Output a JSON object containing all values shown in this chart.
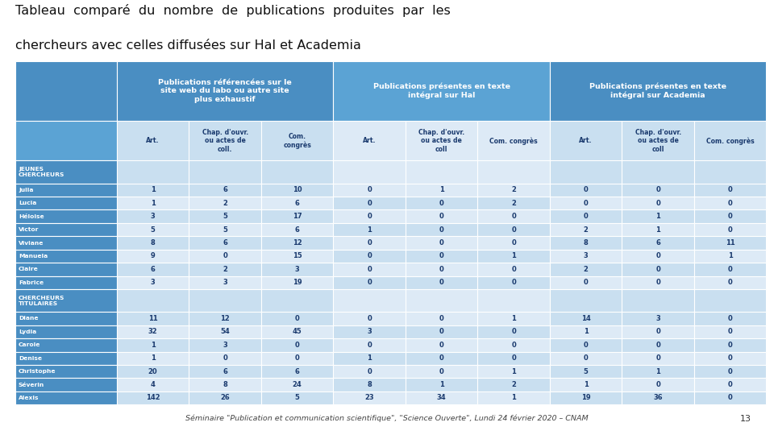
{
  "title_line1": "Tableau  comparé  du  nombre  de  publications  produites  par  les",
  "title_line2": "chercheurs avec celles diffusées sur Hal et Academia",
  "col_groups": [
    {
      "label": "Publications référencées sur le\nsite web du labo ou autre site\nplus exhaustif"
    },
    {
      "label": "Publications présentes en texte\nintégral sur Hal"
    },
    {
      "label": "Publications présentes en texte\nintégral sur Academia"
    }
  ],
  "sub_cols": [
    "Art.",
    "Chap. d'ouvr.\nou actes de\ncoll.",
    "Com.\ncongrès",
    "Art.",
    "Chap. d'ouvr.\nou actes de\ncoll",
    "Com. congrès",
    "Art.",
    "Chap. d'ouvr.\nou actes de\ncoll",
    "Com. congrès"
  ],
  "row_headers": [
    [
      "JEUNES\nCHERCHEURS",
      true
    ],
    [
      "Julia",
      false
    ],
    [
      "Lucia",
      false
    ],
    [
      "Héloise",
      false
    ],
    [
      "Victor",
      false
    ],
    [
      "Viviane",
      false
    ],
    [
      "Manuela",
      false
    ],
    [
      "Claire",
      false
    ],
    [
      "Fabrice",
      false
    ],
    [
      "CHERCHEURS\nTITULAIRES",
      true
    ],
    [
      "Diane",
      false
    ],
    [
      "Lydia",
      false
    ],
    [
      "Carole",
      false
    ],
    [
      "Denise",
      false
    ],
    [
      "Christophe",
      false
    ],
    [
      "Séverin",
      false
    ],
    [
      "Alexis",
      false
    ]
  ],
  "data": [
    [
      null,
      null,
      null,
      null,
      null,
      null,
      null,
      null,
      null
    ],
    [
      1,
      6,
      10,
      0,
      1,
      2,
      0,
      0,
      0
    ],
    [
      1,
      2,
      6,
      0,
      0,
      2,
      0,
      0,
      0
    ],
    [
      3,
      5,
      17,
      0,
      0,
      0,
      0,
      1,
      0
    ],
    [
      5,
      5,
      6,
      1,
      0,
      0,
      2,
      1,
      0
    ],
    [
      8,
      6,
      12,
      0,
      0,
      0,
      8,
      6,
      11
    ],
    [
      9,
      0,
      15,
      0,
      0,
      1,
      3,
      0,
      1
    ],
    [
      6,
      2,
      3,
      0,
      0,
      0,
      2,
      0,
      0
    ],
    [
      3,
      3,
      19,
      0,
      0,
      0,
      0,
      0,
      0
    ],
    [
      null,
      null,
      null,
      null,
      null,
      null,
      null,
      null,
      null
    ],
    [
      11,
      12,
      0,
      0,
      0,
      1,
      14,
      3,
      0
    ],
    [
      32,
      54,
      45,
      3,
      0,
      0,
      1,
      0,
      0
    ],
    [
      1,
      3,
      0,
      0,
      0,
      0,
      0,
      0,
      0
    ],
    [
      1,
      0,
      0,
      1,
      0,
      0,
      0,
      0,
      0
    ],
    [
      20,
      6,
      6,
      0,
      0,
      1,
      5,
      1,
      0
    ],
    [
      4,
      8,
      24,
      8,
      1,
      2,
      1,
      0,
      0
    ],
    [
      142,
      26,
      5,
      23,
      34,
      1,
      19,
      36,
      0
    ]
  ],
  "footer": "Séminaire \"Publication et communication scientifique\", \"Science Ouverte\", Lundi 24 février 2020 – CNAM",
  "page_num": "13",
  "color_header_dark": "#4a8ec2",
  "color_header_mid": "#5ba3d4",
  "color_row_blue": "#4a8ec2",
  "color_light1": "#c9dff0",
  "color_light2": "#ddeaf6",
  "color_white": "#ffffff",
  "bg_color": "#ffffff",
  "text_white": "#ffffff",
  "text_dark": "#1a3a6e"
}
